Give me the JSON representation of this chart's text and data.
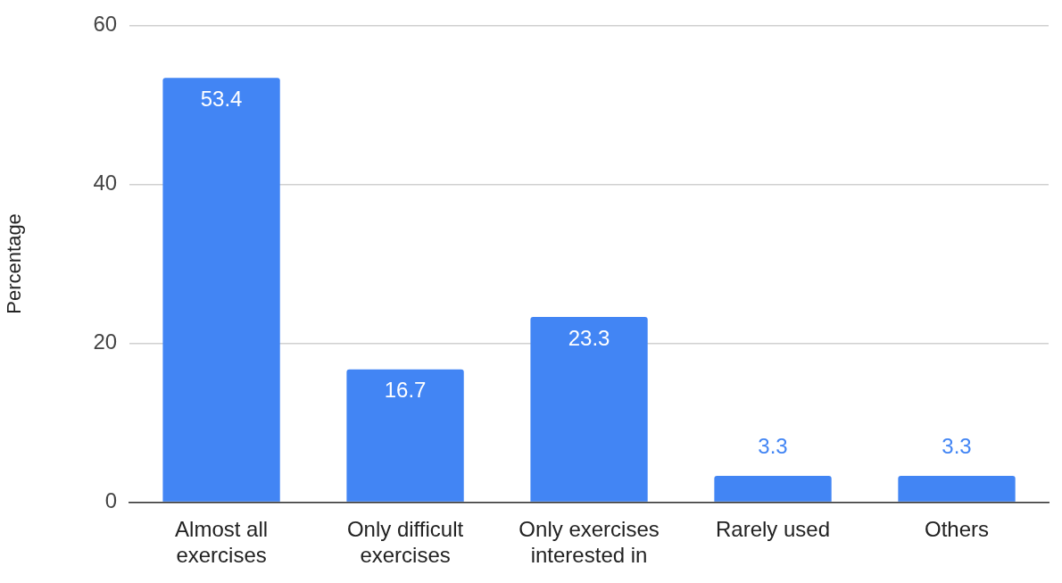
{
  "chart_data": {
    "type": "bar",
    "ylabel": "Percentage",
    "categories": [
      "Almost all exercises",
      "Only difficult exercises",
      "Only exercises interested in",
      "Rarely used",
      "Others"
    ],
    "values": [
      53.4,
      16.7,
      23.3,
      3.3,
      3.3
    ],
    "color": "#4285f4",
    "ylim": [
      0,
      60
    ],
    "yticks": [
      0,
      20,
      40,
      60
    ],
    "grid": "y",
    "legend": false,
    "data_labels": true
  }
}
